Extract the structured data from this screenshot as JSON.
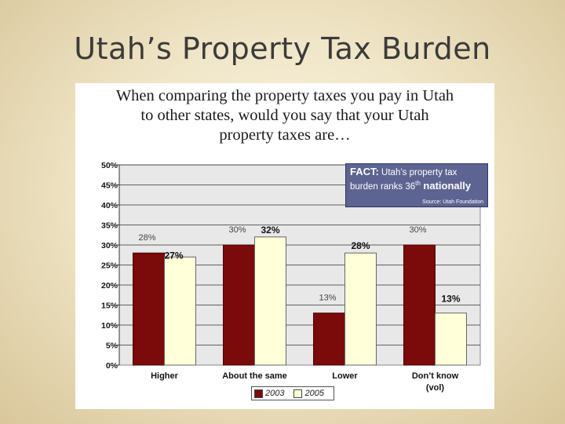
{
  "slide": {
    "title": "Utah’s Property Tax Burden"
  },
  "question_lines": [
    "When comparing the property taxes you pay in Utah",
    "to other states, would you say that your Utah",
    "property taxes are…"
  ],
  "fact": {
    "label": "FACT:",
    "line1": "Utah’s property tax",
    "line2_pre": "burden ranks 36",
    "line2_sup": "th",
    "line2_post": " nationally",
    "source": "Source: Utah Foundation"
  },
  "colors": {
    "series_2003": "#7b0a0a",
    "series_2005": "#ffffd9",
    "plot_bg": "#e8e8e8",
    "fact_bg": "#5d6491"
  },
  "chart_data": {
    "type": "bar",
    "categories": [
      "Higher",
      "About the same",
      "Lower",
      "Don’t know\n(vol)"
    ],
    "series": [
      {
        "name": "2003",
        "values": [
          28,
          30,
          13,
          30
        ],
        "labels": [
          "28%",
          "30%",
          "13%",
          "30%"
        ]
      },
      {
        "name": "2005",
        "values": [
          27,
          32,
          28,
          13
        ],
        "labels": [
          "27%",
          "32%",
          "28%",
          "13%"
        ]
      }
    ],
    "ylim": [
      0,
      50
    ],
    "yticks": [
      "0%",
      "5%",
      "10%",
      "15%",
      "20%",
      "25%",
      "30%",
      "35%",
      "40%",
      "45%",
      "50%"
    ],
    "grid": true,
    "legend": "bottom"
  }
}
